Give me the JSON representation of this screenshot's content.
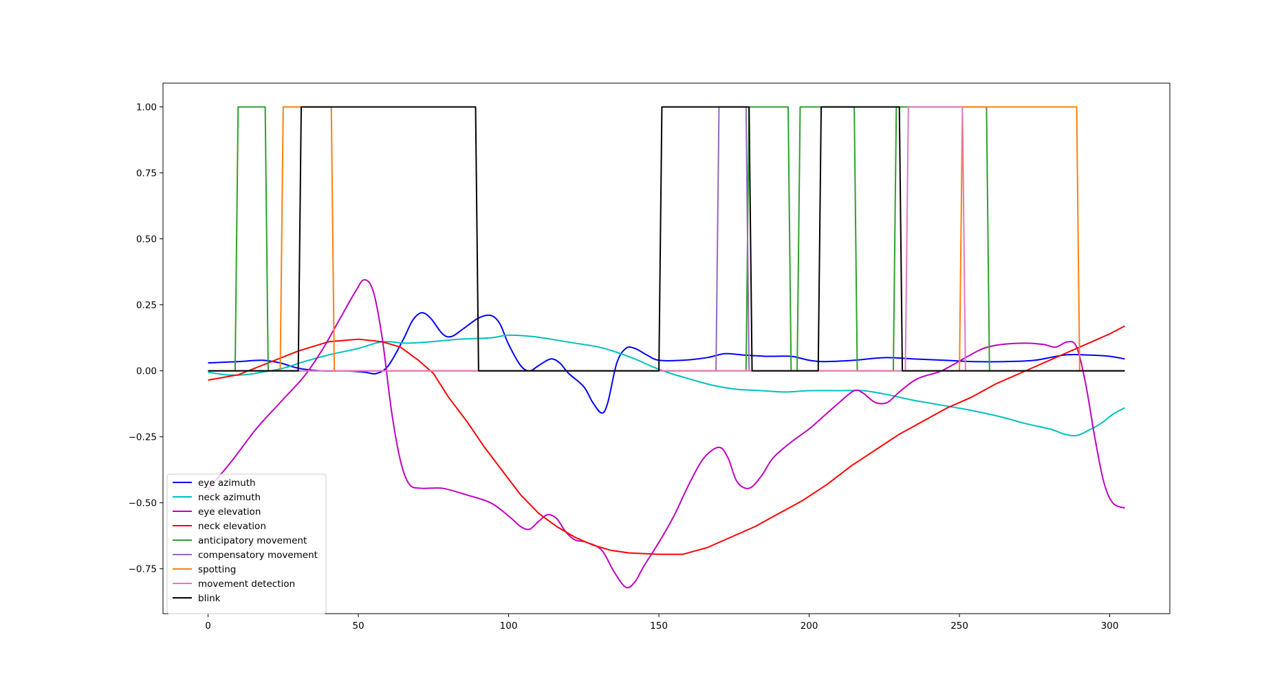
{
  "chart_data": {
    "type": "line",
    "title": "",
    "xlabel": "",
    "ylabel": "",
    "xlim": [
      -15,
      320
    ],
    "ylim": [
      -0.92,
      1.09
    ],
    "xticks": [
      0,
      50,
      100,
      150,
      200,
      250,
      300
    ],
    "yticks": [
      -0.75,
      -0.5,
      -0.25,
      0.0,
      0.25,
      0.5,
      0.75,
      1.0
    ],
    "xtick_labels": [
      "0",
      "50",
      "100",
      "150",
      "200",
      "250",
      "300"
    ],
    "ytick_labels": [
      "−0.75",
      "−0.50",
      "−0.25",
      "0.00",
      "0.25",
      "0.50",
      "0.75",
      "1.00"
    ],
    "grid": false,
    "legend_position": "lower left",
    "series": [
      {
        "name": "eye azimuth",
        "color": "#0000ff",
        "smooth": true,
        "points": [
          [
            0,
            0.03
          ],
          [
            10,
            0.035
          ],
          [
            18,
            0.04
          ],
          [
            24,
            0.03
          ],
          [
            30,
            0.01
          ],
          [
            38,
            0.0
          ],
          [
            45,
            0.0
          ],
          [
            52,
            -0.005
          ],
          [
            56,
            -0.01
          ],
          [
            60,
            0.02
          ],
          [
            65,
            0.12
          ],
          [
            68,
            0.19
          ],
          [
            71,
            0.22
          ],
          [
            74,
            0.2
          ],
          [
            78,
            0.14
          ],
          [
            81,
            0.13
          ],
          [
            85,
            0.16
          ],
          [
            90,
            0.2
          ],
          [
            94,
            0.21
          ],
          [
            97,
            0.18
          ],
          [
            100,
            0.1
          ],
          [
            104,
            0.02
          ],
          [
            107,
            0.0
          ],
          [
            110,
            0.02
          ],
          [
            114,
            0.045
          ],
          [
            117,
            0.03
          ],
          [
            120,
            -0.01
          ],
          [
            125,
            -0.06
          ],
          [
            128,
            -0.12
          ],
          [
            131,
            -0.16
          ],
          [
            133,
            -0.12
          ],
          [
            136,
            0.03
          ],
          [
            139,
            0.085
          ],
          [
            142,
            0.085
          ],
          [
            146,
            0.06
          ],
          [
            150,
            0.04
          ],
          [
            158,
            0.04
          ],
          [
            166,
            0.05
          ],
          [
            172,
            0.065
          ],
          [
            178,
            0.06
          ],
          [
            186,
            0.055
          ],
          [
            194,
            0.055
          ],
          [
            200,
            0.04
          ],
          [
            205,
            0.035
          ],
          [
            215,
            0.04
          ],
          [
            225,
            0.05
          ],
          [
            235,
            0.045
          ],
          [
            245,
            0.04
          ],
          [
            255,
            0.035
          ],
          [
            265,
            0.035
          ],
          [
            275,
            0.04
          ],
          [
            285,
            0.06
          ],
          [
            293,
            0.06
          ],
          [
            300,
            0.055
          ],
          [
            305,
            0.045
          ]
        ]
      },
      {
        "name": "neck azimuth",
        "color": "#00bfbf",
        "smooth": true,
        "points": [
          [
            0,
            -0.005
          ],
          [
            6,
            -0.015
          ],
          [
            12,
            -0.015
          ],
          [
            18,
            -0.005
          ],
          [
            25,
            0.01
          ],
          [
            32,
            0.035
          ],
          [
            40,
            0.06
          ],
          [
            50,
            0.085
          ],
          [
            58,
            0.11
          ],
          [
            66,
            0.105
          ],
          [
            74,
            0.11
          ],
          [
            84,
            0.12
          ],
          [
            94,
            0.125
          ],
          [
            100,
            0.135
          ],
          [
            108,
            0.13
          ],
          [
            114,
            0.12
          ],
          [
            122,
            0.105
          ],
          [
            130,
            0.09
          ],
          [
            136,
            0.07
          ],
          [
            142,
            0.045
          ],
          [
            148,
            0.015
          ],
          [
            154,
            -0.01
          ],
          [
            160,
            -0.03
          ],
          [
            168,
            -0.055
          ],
          [
            176,
            -0.07
          ],
          [
            184,
            -0.075
          ],
          [
            192,
            -0.08
          ],
          [
            200,
            -0.075
          ],
          [
            210,
            -0.075
          ],
          [
            218,
            -0.075
          ],
          [
            226,
            -0.09
          ],
          [
            234,
            -0.11
          ],
          [
            244,
            -0.13
          ],
          [
            254,
            -0.15
          ],
          [
            264,
            -0.175
          ],
          [
            272,
            -0.2
          ],
          [
            280,
            -0.22
          ],
          [
            285,
            -0.24
          ],
          [
            289,
            -0.245
          ],
          [
            293,
            -0.225
          ],
          [
            297,
            -0.2
          ],
          [
            301,
            -0.165
          ],
          [
            305,
            -0.14
          ]
        ]
      },
      {
        "name": "eye elevation",
        "color": "#bf00bf",
        "smooth": true,
        "points": [
          [
            0,
            -0.45
          ],
          [
            8,
            -0.34
          ],
          [
            16,
            -0.22
          ],
          [
            24,
            -0.12
          ],
          [
            32,
            -0.02
          ],
          [
            38,
            0.08
          ],
          [
            44,
            0.2
          ],
          [
            49,
            0.3
          ],
          [
            52,
            0.345
          ],
          [
            55,
            0.3
          ],
          [
            58,
            0.12
          ],
          [
            61,
            -0.15
          ],
          [
            64,
            -0.34
          ],
          [
            67,
            -0.43
          ],
          [
            71,
            -0.445
          ],
          [
            78,
            -0.445
          ],
          [
            86,
            -0.47
          ],
          [
            94,
            -0.5
          ],
          [
            100,
            -0.55
          ],
          [
            104,
            -0.59
          ],
          [
            107,
            -0.6
          ],
          [
            110,
            -0.57
          ],
          [
            113,
            -0.545
          ],
          [
            116,
            -0.56
          ],
          [
            119,
            -0.61
          ],
          [
            122,
            -0.64
          ],
          [
            126,
            -0.65
          ],
          [
            131,
            -0.68
          ],
          [
            135,
            -0.76
          ],
          [
            139,
            -0.82
          ],
          [
            142,
            -0.8
          ],
          [
            145,
            -0.74
          ],
          [
            150,
            -0.65
          ],
          [
            155,
            -0.55
          ],
          [
            160,
            -0.43
          ],
          [
            165,
            -0.33
          ],
          [
            170,
            -0.29
          ],
          [
            173,
            -0.33
          ],
          [
            176,
            -0.42
          ],
          [
            180,
            -0.445
          ],
          [
            184,
            -0.4
          ],
          [
            188,
            -0.33
          ],
          [
            194,
            -0.27
          ],
          [
            200,
            -0.22
          ],
          [
            206,
            -0.16
          ],
          [
            210,
            -0.12
          ],
          [
            215,
            -0.075
          ],
          [
            218,
            -0.085
          ],
          [
            222,
            -0.12
          ],
          [
            226,
            -0.12
          ],
          [
            230,
            -0.08
          ],
          [
            236,
            -0.03
          ],
          [
            244,
            0.0
          ],
          [
            252,
            0.05
          ],
          [
            258,
            0.085
          ],
          [
            264,
            0.1
          ],
          [
            272,
            0.105
          ],
          [
            278,
            0.1
          ],
          [
            282,
            0.09
          ],
          [
            286,
            0.11
          ],
          [
            289,
            0.09
          ],
          [
            292,
            -0.05
          ],
          [
            295,
            -0.25
          ],
          [
            298,
            -0.42
          ],
          [
            301,
            -0.5
          ],
          [
            305,
            -0.52
          ]
        ]
      },
      {
        "name": "neck elevation",
        "color": "#ff0000",
        "smooth": false,
        "points": [
          [
            0,
            -0.035
          ],
          [
            10,
            -0.015
          ],
          [
            20,
            0.03
          ],
          [
            30,
            0.075
          ],
          [
            40,
            0.11
          ],
          [
            50,
            0.12
          ],
          [
            58,
            0.11
          ],
          [
            64,
            0.09
          ],
          [
            70,
            0.04
          ],
          [
            75,
            -0.01
          ],
          [
            80,
            -0.1
          ],
          [
            86,
            -0.19
          ],
          [
            92,
            -0.29
          ],
          [
            98,
            -0.38
          ],
          [
            104,
            -0.47
          ],
          [
            110,
            -0.54
          ],
          [
            116,
            -0.59
          ],
          [
            122,
            -0.63
          ],
          [
            128,
            -0.66
          ],
          [
            134,
            -0.68
          ],
          [
            140,
            -0.69
          ],
          [
            150,
            -0.695
          ],
          [
            158,
            -0.695
          ],
          [
            166,
            -0.67
          ],
          [
            174,
            -0.63
          ],
          [
            182,
            -0.59
          ],
          [
            190,
            -0.54
          ],
          [
            198,
            -0.49
          ],
          [
            206,
            -0.43
          ],
          [
            214,
            -0.36
          ],
          [
            222,
            -0.3
          ],
          [
            230,
            -0.24
          ],
          [
            238,
            -0.19
          ],
          [
            246,
            -0.14
          ],
          [
            254,
            -0.1
          ],
          [
            262,
            -0.05
          ],
          [
            270,
            -0.01
          ],
          [
            278,
            0.03
          ],
          [
            286,
            0.07
          ],
          [
            294,
            0.11
          ],
          [
            300,
            0.14
          ],
          [
            305,
            0.17
          ]
        ]
      },
      {
        "name": "anticipatory movement",
        "color": "#2ca02c",
        "smooth": false,
        "points": [
          [
            0,
            0
          ],
          [
            9,
            0
          ],
          [
            10,
            1
          ],
          [
            19,
            1
          ],
          [
            20,
            0
          ],
          [
            179,
            0
          ],
          [
            180,
            1
          ],
          [
            193,
            1
          ],
          [
            194,
            0
          ],
          [
            196,
            0
          ],
          [
            197,
            1
          ],
          [
            215,
            1
          ],
          [
            216,
            0
          ],
          [
            228,
            0
          ],
          [
            229,
            1
          ],
          [
            259,
            1
          ],
          [
            260,
            0
          ],
          [
            305,
            0
          ]
        ]
      },
      {
        "name": "compensatory movement",
        "color": "#9467bd",
        "smooth": false,
        "points": [
          [
            0,
            0
          ],
          [
            169,
            0
          ],
          [
            170,
            1
          ],
          [
            179,
            1
          ],
          [
            180,
            0
          ],
          [
            305,
            0
          ]
        ]
      },
      {
        "name": "spotting",
        "color": "#ff7f0e",
        "smooth": false,
        "points": [
          [
            0,
            0
          ],
          [
            24,
            0
          ],
          [
            25,
            1
          ],
          [
            41,
            1
          ],
          [
            42,
            0
          ],
          [
            250,
            0
          ],
          [
            251,
            1
          ],
          [
            289,
            1
          ],
          [
            290,
            0
          ],
          [
            305,
            0
          ]
        ]
      },
      {
        "name": "movement detection",
        "color": "#e377c2",
        "smooth": false,
        "points": [
          [
            0,
            0
          ],
          [
            232,
            0
          ],
          [
            233,
            1
          ],
          [
            251,
            1
          ],
          [
            252,
            0
          ],
          [
            305,
            0
          ]
        ]
      },
      {
        "name": "blink",
        "color": "#000000",
        "smooth": false,
        "points": [
          [
            0,
            0
          ],
          [
            30,
            0
          ],
          [
            31,
            1
          ],
          [
            89,
            1
          ],
          [
            90,
            0
          ],
          [
            150,
            0
          ],
          [
            151,
            1
          ],
          [
            180,
            1
          ],
          [
            181,
            0
          ],
          [
            203,
            0
          ],
          [
            204,
            1
          ],
          [
            230,
            1
          ],
          [
            231,
            0
          ],
          [
            305,
            0
          ]
        ]
      }
    ]
  }
}
